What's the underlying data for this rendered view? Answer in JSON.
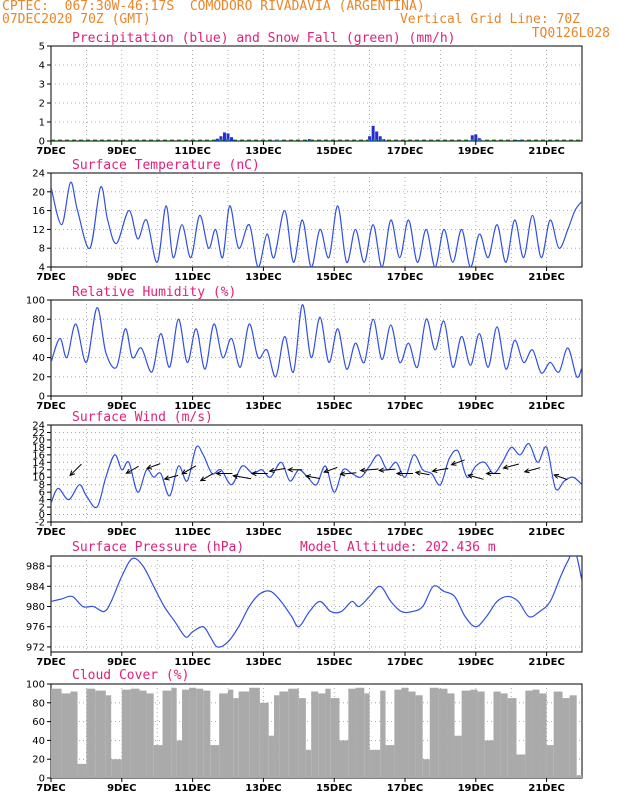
{
  "header": {
    "line1_left": "CPTEC:  067:30W-46:17S  COMODORO RIVADAVIA (ARGENTINA)",
    "line2_left": "07DEC2020 70Z (GMT)",
    "line2_right": "Vertical Grid Line: 70Z",
    "line3_right": "TQ0126L028"
  },
  "x_ticks": [
    "7DEC",
    "9DEC",
    "11DEC",
    "13DEC",
    "15DEC",
    "17DEC",
    "19DEC",
    "21DEC"
  ],
  "chart_data": [
    {
      "type": "bar",
      "title": "Precipitation (blue) and Snow Fall (green) (mm/h)",
      "ylim": [
        0,
        5
      ],
      "yticks": [
        "0",
        "1",
        "2",
        "3",
        "4",
        "5"
      ],
      "colors": {
        "rain": "#2030d0",
        "snow": "#20b020"
      },
      "series": [
        {
          "name": "Precipitation",
          "points": [
            [
              11.7,
              0.12
            ],
            [
              11.8,
              0.25
            ],
            [
              11.9,
              0.45
            ],
            [
              12.0,
              0.4
            ],
            [
              12.1,
              0.2
            ],
            [
              13.4,
              0.05
            ],
            [
              14.3,
              0.1
            ],
            [
              16.0,
              0.25
            ],
            [
              16.1,
              0.8
            ],
            [
              16.2,
              0.5
            ],
            [
              16.3,
              0.25
            ],
            [
              16.4,
              0.1
            ],
            [
              18.9,
              0.3
            ],
            [
              19.0,
              0.35
            ],
            [
              19.1,
              0.15
            ],
            [
              20.2,
              0.05
            ]
          ]
        },
        {
          "name": "Snow Fall",
          "points": []
        }
      ]
    },
    {
      "type": "line",
      "title": "Surface Temperature (nC)",
      "ylim": [
        4,
        24
      ],
      "yticks": [
        "4",
        "8",
        "12",
        "16",
        "20",
        "24"
      ],
      "color": "#3050e0",
      "x": [
        7.0,
        7.3,
        7.55,
        7.75,
        8.1,
        8.4,
        8.6,
        8.85,
        9.2,
        9.45,
        9.7,
        10.0,
        10.25,
        10.45,
        10.7,
        10.95,
        11.2,
        11.45,
        11.65,
        11.85,
        12.05,
        12.3,
        12.6,
        12.85,
        13.1,
        13.3,
        13.6,
        13.85,
        14.1,
        14.35,
        14.6,
        14.85,
        15.1,
        15.35,
        15.6,
        15.85,
        16.1,
        16.35,
        16.6,
        16.85,
        17.1,
        17.35,
        17.6,
        17.85,
        18.1,
        18.35,
        18.6,
        18.85,
        19.1,
        19.35,
        19.6,
        19.85,
        20.1,
        20.35,
        20.6,
        20.85,
        21.1,
        21.35,
        21.6,
        21.8,
        22.0
      ],
      "values": [
        21,
        13,
        22,
        16,
        8,
        21,
        14,
        9,
        16,
        10,
        14,
        5,
        17,
        6,
        13,
        6,
        15,
        8,
        12,
        6,
        17,
        8,
        13,
        4,
        11,
        6,
        16,
        5,
        14,
        4,
        12,
        6,
        17,
        5,
        12,
        5,
        13,
        4,
        14,
        6,
        14,
        5,
        12,
        4,
        12,
        5,
        12,
        4,
        11,
        6,
        13,
        5,
        14,
        6,
        15,
        6,
        14,
        8,
        12,
        16,
        18
      ]
    },
    {
      "type": "line",
      "title": "Relative Humidity (%)",
      "ylim": [
        0,
        100
      ],
      "yticks": [
        "0",
        "20",
        "40",
        "60",
        "80",
        "100"
      ],
      "color": "#3050e0",
      "x": [
        7.0,
        7.25,
        7.45,
        7.7,
        8.0,
        8.3,
        8.55,
        8.85,
        9.1,
        9.3,
        9.55,
        9.85,
        10.1,
        10.35,
        10.6,
        10.85,
        11.1,
        11.35,
        11.6,
        11.85,
        12.1,
        12.35,
        12.6,
        12.85,
        13.1,
        13.35,
        13.6,
        13.85,
        14.1,
        14.35,
        14.6,
        14.85,
        15.1,
        15.35,
        15.6,
        15.85,
        16.1,
        16.35,
        16.6,
        16.85,
        17.1,
        17.35,
        17.6,
        17.85,
        18.1,
        18.35,
        18.6,
        18.85,
        19.1,
        19.35,
        19.6,
        19.85,
        20.1,
        20.35,
        20.6,
        20.85,
        21.1,
        21.35,
        21.6,
        21.85,
        22.0
      ],
      "values": [
        35,
        60,
        40,
        75,
        35,
        92,
        45,
        30,
        70,
        40,
        50,
        25,
        65,
        30,
        80,
        35,
        70,
        28,
        75,
        40,
        60,
        30,
        75,
        40,
        48,
        20,
        62,
        25,
        95,
        40,
        82,
        35,
        70,
        28,
        55,
        35,
        80,
        38,
        74,
        35,
        55,
        30,
        80,
        48,
        78,
        30,
        62,
        32,
        65,
        30,
        72,
        28,
        58,
        35,
        48,
        24,
        35,
        25,
        50,
        20,
        30
      ]
    },
    {
      "type": "line",
      "title": "Surface Wind (m/s)",
      "ylim": [
        -2,
        24
      ],
      "yticks": [
        "-2",
        "0",
        "2",
        "4",
        "6",
        "8",
        "10",
        "12",
        "14",
        "16",
        "18",
        "20",
        "22",
        "24"
      ],
      "color": "#3050e0",
      "x": [
        7.0,
        7.2,
        7.5,
        7.8,
        8.0,
        8.3,
        8.55,
        8.8,
        9.0,
        9.2,
        9.45,
        9.7,
        9.9,
        10.1,
        10.35,
        10.6,
        10.85,
        11.1,
        11.3,
        11.55,
        11.8,
        12.1,
        12.4,
        12.7,
        12.95,
        13.2,
        13.5,
        13.75,
        14.0,
        14.25,
        14.5,
        14.75,
        15.0,
        15.25,
        15.5,
        15.75,
        16.0,
        16.25,
        16.5,
        16.75,
        17.0,
        17.25,
        17.5,
        17.75,
        18.0,
        18.25,
        18.5,
        18.75,
        19.0,
        19.25,
        19.5,
        19.75,
        20.0,
        20.25,
        20.5,
        20.75,
        21.0,
        21.25,
        21.5,
        21.75,
        22.0
      ],
      "values": [
        3,
        7,
        4,
        8,
        5,
        2,
        10,
        16,
        12,
        14,
        6,
        12,
        10,
        11,
        5,
        13,
        9,
        18,
        16,
        11,
        12,
        8,
        13,
        11,
        12,
        10,
        14,
        9,
        12,
        10,
        8,
        13,
        6,
        12,
        11,
        10,
        13,
        16,
        12,
        14,
        10,
        16,
        12,
        11,
        8,
        15,
        17,
        10,
        13,
        14,
        11,
        14,
        18,
        16,
        19,
        14,
        18,
        7,
        9,
        10,
        8
      ],
      "arrows": [
        [
          7.7,
          12,
          225,
          1.5
        ],
        [
          9.3,
          12,
          240,
          1.0
        ],
        [
          9.9,
          13,
          250,
          1.0
        ],
        [
          10.4,
          10,
          255,
          1.0
        ],
        [
          10.9,
          12,
          240,
          1.5
        ],
        [
          11.4,
          10,
          240,
          1.0
        ],
        [
          11.9,
          11,
          270,
          1.5
        ],
        [
          12.4,
          10,
          280,
          2.0
        ],
        [
          12.9,
          11,
          270,
          1.5
        ],
        [
          13.4,
          12,
          260,
          1.5
        ],
        [
          13.9,
          12,
          270,
          1.0
        ],
        [
          14.4,
          10,
          280,
          1.0
        ],
        [
          14.9,
          12,
          250,
          1.0
        ],
        [
          15.4,
          11,
          265,
          1.5
        ],
        [
          16.0,
          12,
          265,
          2.0
        ],
        [
          16.5,
          12,
          265,
          1.5
        ],
        [
          17.0,
          11,
          270,
          1.5
        ],
        [
          17.5,
          11,
          280,
          1.0
        ],
        [
          18.0,
          12,
          260,
          1.5
        ],
        [
          18.5,
          14,
          250,
          1.0
        ],
        [
          19.0,
          10,
          285,
          1.5
        ],
        [
          19.5,
          11,
          270,
          1.0
        ],
        [
          20.0,
          13,
          255,
          1.5
        ],
        [
          20.6,
          12,
          255,
          1.5
        ],
        [
          21.4,
          10,
          290,
          1.0
        ]
      ]
    },
    {
      "type": "line",
      "title": "Surface Pressure (hPa)",
      "annotation": "Model Altitude: 202.436 m",
      "ylim": [
        971,
        990
      ],
      "yticks": [
        "972",
        "976",
        "980",
        "984",
        "988"
      ],
      "color": "#3050e0",
      "x": [
        7.0,
        7.3,
        7.6,
        7.9,
        8.2,
        8.5,
        8.7,
        9.0,
        9.3,
        9.6,
        9.9,
        10.2,
        10.5,
        10.8,
        11.0,
        11.3,
        11.5,
        11.7,
        12.0,
        12.3,
        12.6,
        12.9,
        13.2,
        13.5,
        13.8,
        14.0,
        14.3,
        14.6,
        14.9,
        15.2,
        15.5,
        15.7,
        16.0,
        16.3,
        16.6,
        16.9,
        17.2,
        17.5,
        17.8,
        18.1,
        18.4,
        18.7,
        19.0,
        19.3,
        19.6,
        19.9,
        20.2,
        20.5,
        20.8,
        21.1,
        21.4,
        21.6,
        21.8,
        22.0
      ],
      "values": [
        981,
        981.5,
        982,
        980,
        980,
        979,
        981,
        986,
        989.5,
        988,
        984,
        980,
        977,
        974,
        975,
        976,
        974,
        972,
        973,
        976,
        980,
        982.5,
        983,
        981,
        978,
        976,
        979,
        981,
        979,
        979,
        981,
        980,
        982,
        984,
        981,
        979,
        979,
        980,
        984,
        983,
        982,
        978,
        976,
        978,
        981,
        982,
        981,
        978,
        979,
        981,
        986,
        989,
        991,
        985
      ]
    },
    {
      "type": "bar",
      "title": "Cloud Cover (%)",
      "ylim": [
        0,
        100
      ],
      "yticks": [
        "0",
        "20",
        "40",
        "60",
        "80",
        "100"
      ],
      "color": "#aaaaaa",
      "x": [
        7.0,
        7.3,
        7.55,
        7.75,
        8.0,
        8.25,
        8.55,
        8.7,
        9.0,
        9.25,
        9.5,
        9.7,
        9.9,
        10.15,
        10.4,
        10.55,
        10.7,
        10.9,
        11.1,
        11.3,
        11.5,
        11.75,
        12.0,
        12.15,
        12.3,
        12.6,
        12.9,
        13.15,
        13.3,
        13.45,
        13.7,
        14.0,
        14.2,
        14.35,
        14.55,
        14.75,
        14.9,
        15.15,
        15.4,
        15.6,
        15.85,
        16.0,
        16.3,
        16.45,
        16.7,
        16.9,
        17.1,
        17.3,
        17.5,
        17.7,
        17.95,
        18.2,
        18.4,
        18.6,
        18.85,
        19.05,
        19.25,
        19.5,
        19.7,
        19.9,
        20.15,
        20.4,
        20.6,
        20.8,
        21.0,
        21.2,
        21.45,
        21.65,
        21.85,
        22.0
      ],
      "values": [
        95,
        90,
        92,
        15,
        95,
        93,
        88,
        20,
        94,
        95,
        93,
        90,
        35,
        93,
        96,
        40,
        94,
        96,
        95,
        93,
        35,
        90,
        94,
        85,
        92,
        96,
        80,
        45,
        88,
        92,
        95,
        85,
        30,
        92,
        90,
        95,
        85,
        40,
        95,
        96,
        90,
        30,
        93,
        35,
        94,
        96,
        92,
        88,
        20,
        96,
        95,
        90,
        45,
        93,
        94,
        92,
        40,
        92,
        90,
        85,
        25,
        93,
        94,
        90,
        35,
        92,
        85,
        88,
        3,
        0
      ]
    }
  ]
}
